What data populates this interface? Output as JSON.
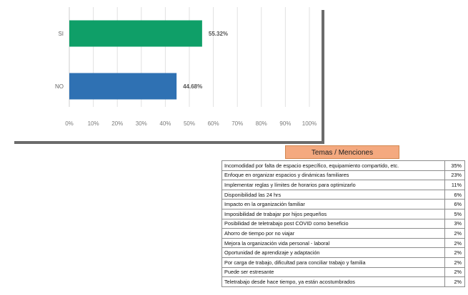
{
  "chart_data": {
    "type": "bar",
    "orientation": "horizontal",
    "categories": [
      "SI",
      "NO"
    ],
    "values": [
      55.32,
      44.68
    ],
    "value_labels": [
      "55.32%",
      "44.68%"
    ],
    "colors": [
      "#0f9f68",
      "#2f71b3"
    ],
    "xlim": [
      0,
      100
    ],
    "x_ticks": [
      "0%",
      "10%",
      "20%",
      "30%",
      "40%",
      "50%",
      "60%",
      "70%",
      "80%",
      "90%",
      "100%"
    ],
    "grid": true,
    "title": "",
    "xlabel": "",
    "ylabel": ""
  },
  "topics": {
    "header": "Temas / Menciones",
    "rows": [
      {
        "label": "Incomodidad por falta de espacio específico, equipamiento compartido, etc.",
        "pct": "35%"
      },
      {
        "label": "Enfoque en organizar espacios y dinámicas familiares",
        "pct": "23%"
      },
      {
        "label": "Implementar reglas y límites de horarios para optimizarlo",
        "pct": "11%"
      },
      {
        "label": "Disponibilidad las 24 hrs",
        "pct": "6%"
      },
      {
        "label": "Impacto en la organización familiar",
        "pct": "6%"
      },
      {
        "label": "Imposibilidad de trabajar por hijos pequeños",
        "pct": "5%"
      },
      {
        "label": "Posibilidad de teletrabajo post COVID como beneficio",
        "pct": "3%"
      },
      {
        "label": "Ahorro de tiempo por no viajar",
        "pct": "2%"
      },
      {
        "label": "Mejora la organización vida personal - laboral",
        "pct": "2%"
      },
      {
        "label": "Oportunidad de aprendizaje  y adaptación",
        "pct": "2%"
      },
      {
        "label": "Por carga de trabajo, dificultad para conciliar trabajo y familia",
        "pct": "2%"
      },
      {
        "label": "Puede ser estresante",
        "pct": "2%"
      },
      {
        "label": "Teletrabajo desde hace tiempo, ya están acostumbrados",
        "pct": "2%"
      }
    ]
  }
}
